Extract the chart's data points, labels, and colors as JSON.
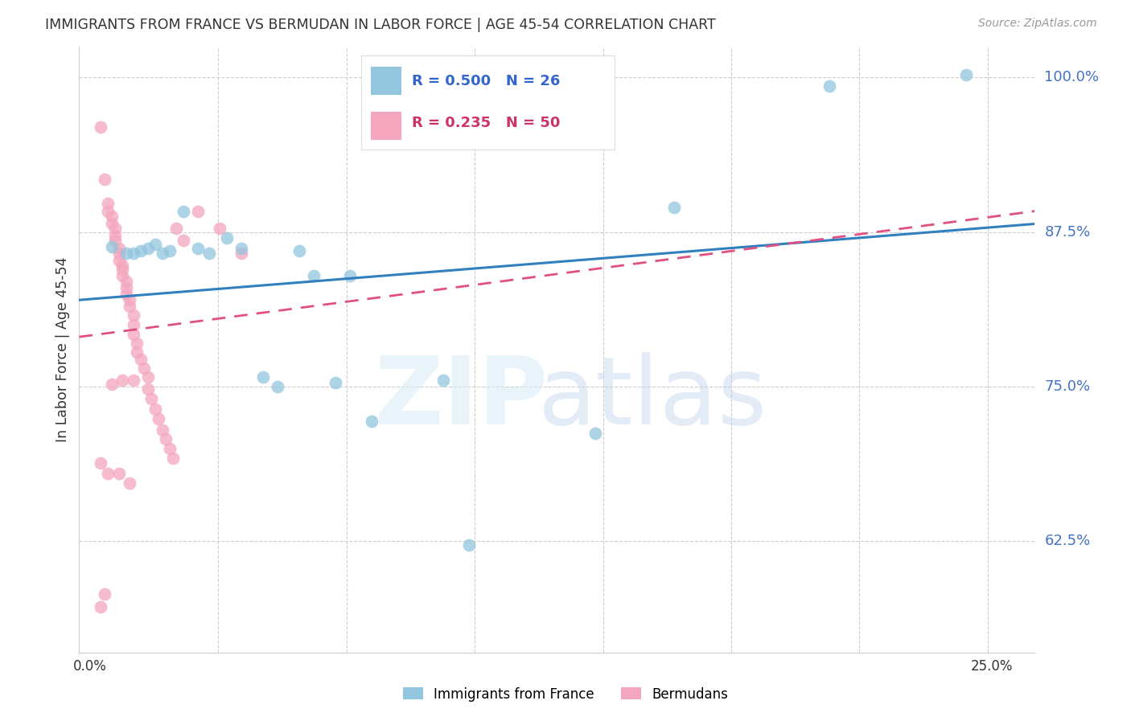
{
  "title": "IMMIGRANTS FROM FRANCE VS BERMUDAN IN LABOR FORCE | AGE 45-54 CORRELATION CHART",
  "source": "Source: ZipAtlas.com",
  "ylabel": "In Labor Force | Age 45-54",
  "ytick_labels": [
    "100.0%",
    "87.5%",
    "75.0%",
    "62.5%"
  ],
  "ytick_values": [
    1.0,
    0.875,
    0.75,
    0.625
  ],
  "ymin": 0.535,
  "ymax": 1.025,
  "xmin": -0.003,
  "xmax": 0.262,
  "legend_france_R": "0.500",
  "legend_france_N": "26",
  "legend_bermuda_R": "0.235",
  "legend_bermuda_N": "50",
  "france_color": "#92c5de",
  "bermuda_color": "#f4a6be",
  "france_line_color": "#3080c0",
  "bermuda_line_color": "#e05080",
  "france_points": [
    [
      0.006,
      0.863
    ],
    [
      0.01,
      0.858
    ],
    [
      0.012,
      0.858
    ],
    [
      0.014,
      0.86
    ],
    [
      0.016,
      0.862
    ],
    [
      0.018,
      0.865
    ],
    [
      0.02,
      0.858
    ],
    [
      0.022,
      0.86
    ],
    [
      0.026,
      0.892
    ],
    [
      0.03,
      0.862
    ],
    [
      0.033,
      0.858
    ],
    [
      0.038,
      0.87
    ],
    [
      0.042,
      0.862
    ],
    [
      0.048,
      0.758
    ],
    [
      0.052,
      0.75
    ],
    [
      0.058,
      0.86
    ],
    [
      0.062,
      0.84
    ],
    [
      0.068,
      0.753
    ],
    [
      0.072,
      0.84
    ],
    [
      0.078,
      0.722
    ],
    [
      0.098,
      0.755
    ],
    [
      0.105,
      0.622
    ],
    [
      0.14,
      0.712
    ],
    [
      0.162,
      0.895
    ],
    [
      0.205,
      0.993
    ],
    [
      0.243,
      1.002
    ]
  ],
  "bermuda_points": [
    [
      0.003,
      0.96
    ],
    [
      0.004,
      0.918
    ],
    [
      0.005,
      0.898
    ],
    [
      0.005,
      0.892
    ],
    [
      0.006,
      0.888
    ],
    [
      0.006,
      0.882
    ],
    [
      0.007,
      0.878
    ],
    [
      0.007,
      0.872
    ],
    [
      0.007,
      0.868
    ],
    [
      0.008,
      0.862
    ],
    [
      0.008,
      0.858
    ],
    [
      0.008,
      0.852
    ],
    [
      0.009,
      0.848
    ],
    [
      0.009,
      0.845
    ],
    [
      0.009,
      0.84
    ],
    [
      0.01,
      0.835
    ],
    [
      0.01,
      0.83
    ],
    [
      0.01,
      0.825
    ],
    [
      0.011,
      0.82
    ],
    [
      0.011,
      0.815
    ],
    [
      0.012,
      0.808
    ],
    [
      0.012,
      0.8
    ],
    [
      0.012,
      0.792
    ],
    [
      0.013,
      0.785
    ],
    [
      0.013,
      0.778
    ],
    [
      0.014,
      0.772
    ],
    [
      0.015,
      0.765
    ],
    [
      0.016,
      0.758
    ],
    [
      0.016,
      0.748
    ],
    [
      0.017,
      0.74
    ],
    [
      0.018,
      0.732
    ],
    [
      0.019,
      0.724
    ],
    [
      0.02,
      0.715
    ],
    [
      0.021,
      0.708
    ],
    [
      0.022,
      0.7
    ],
    [
      0.023,
      0.692
    ],
    [
      0.005,
      0.68
    ],
    [
      0.006,
      0.752
    ],
    [
      0.009,
      0.755
    ],
    [
      0.024,
      0.878
    ],
    [
      0.026,
      0.868
    ],
    [
      0.03,
      0.892
    ],
    [
      0.036,
      0.878
    ],
    [
      0.042,
      0.858
    ],
    [
      0.003,
      0.688
    ],
    [
      0.004,
      0.582
    ],
    [
      0.011,
      0.672
    ],
    [
      0.012,
      0.755
    ],
    [
      0.003,
      0.572
    ],
    [
      0.008,
      0.68
    ]
  ]
}
